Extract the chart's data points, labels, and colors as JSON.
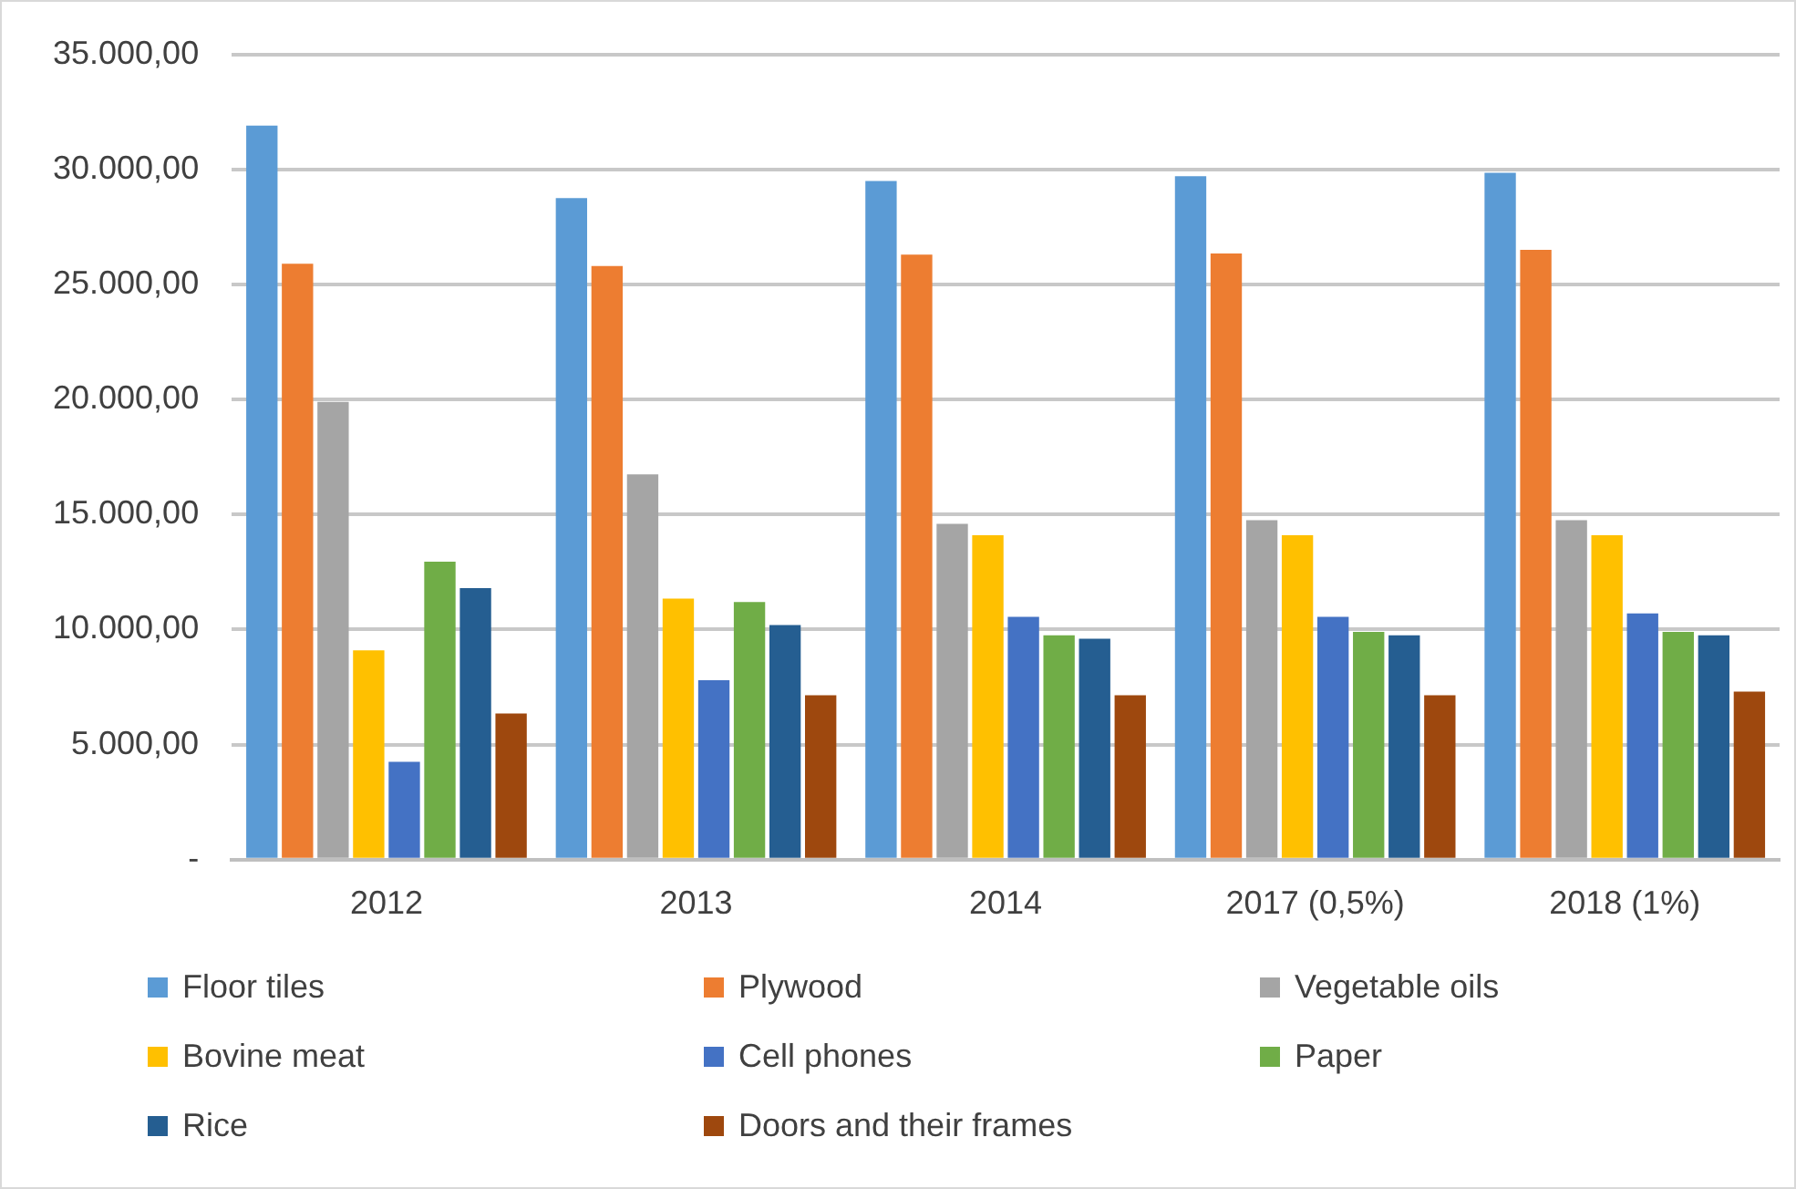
{
  "chart_data": {
    "type": "bar",
    "categories": [
      "2012",
      "2013",
      "2014",
      "2017 (0,5%)",
      "2018 (1%)"
    ],
    "series": [
      {
        "name": "Floor tiles",
        "color": "#5b9bd5",
        "values": [
          31900,
          28750,
          29500,
          29700,
          29850
        ]
      },
      {
        "name": "Plywood",
        "color": "#ed7d31",
        "values": [
          25900,
          25800,
          26300,
          26350,
          26500
        ]
      },
      {
        "name": "Vegetable oils",
        "color": "#a5a5a5",
        "values": [
          19900,
          16750,
          14600,
          14750,
          14750
        ]
      },
      {
        "name": "Bovine meat",
        "color": "#ffc000",
        "values": [
          9100,
          11350,
          14100,
          14100,
          14100
        ]
      },
      {
        "name": "Cell phones",
        "color": "#4472c4",
        "values": [
          4250,
          7800,
          10550,
          10550,
          10700
        ]
      },
      {
        "name": "Paper",
        "color": "#70ad47",
        "values": [
          12950,
          11200,
          9750,
          9900,
          9900
        ]
      },
      {
        "name": "Rice",
        "color": "#255e91",
        "values": [
          11800,
          10200,
          9600,
          9750,
          9750
        ]
      },
      {
        "name": "Doors and their frames",
        "color": "#9e480e",
        "values": [
          6350,
          7150,
          7150,
          7150,
          7300
        ]
      }
    ],
    "ylim": [
      0,
      35000
    ],
    "yticks": [
      {
        "value": 0,
        "label": "-"
      },
      {
        "value": 5000,
        "label": "5.000,00"
      },
      {
        "value": 10000,
        "label": "10.000,00"
      },
      {
        "value": 15000,
        "label": "15.000,00"
      },
      {
        "value": 20000,
        "label": "20.000,00"
      },
      {
        "value": 25000,
        "label": "25.000,00"
      },
      {
        "value": 30000,
        "label": "30.000,00"
      },
      {
        "value": 35000,
        "label": "35.000,00"
      }
    ],
    "grid": "y",
    "legend": "bottom"
  }
}
